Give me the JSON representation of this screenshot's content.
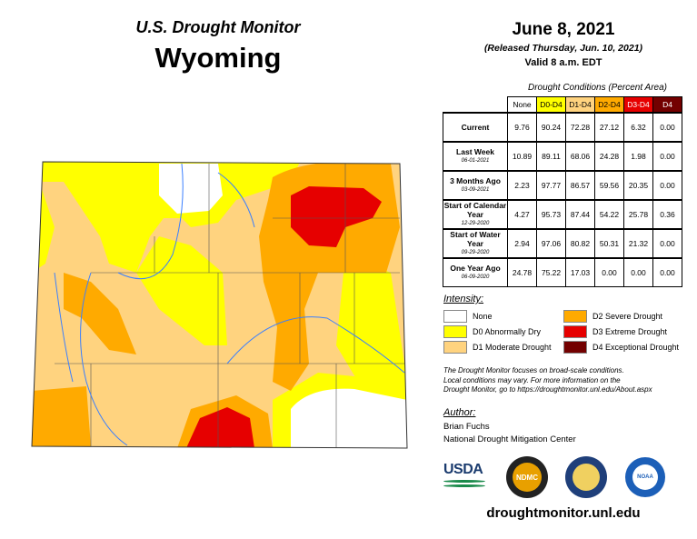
{
  "header": {
    "subtitle": "U.S. Drought Monitor",
    "title": "Wyoming"
  },
  "date": {
    "map_date": "June 8, 2021",
    "released": "(Released Thursday, Jun. 10, 2021)",
    "valid": "Valid 8 a.m. EDT"
  },
  "table": {
    "caption": "Drought Conditions (Percent Area)",
    "columns": [
      {
        "label": "None",
        "color": "#FFFFFF",
        "text": "#000000"
      },
      {
        "label": "D0-D4",
        "color": "#FFFF00",
        "text": "#000000"
      },
      {
        "label": "D1-D4",
        "color": "#FFD37F",
        "text": "#000000"
      },
      {
        "label": "D2-D4",
        "color": "#FFAA00",
        "text": "#000000"
      },
      {
        "label": "D3-D4",
        "color": "#E60000",
        "text": "#FFFFFF"
      },
      {
        "label": "D4",
        "color": "#730000",
        "text": "#FFFFFF"
      }
    ],
    "rows": [
      {
        "label": "Current",
        "sublabel": "",
        "values": [
          "9.76",
          "90.24",
          "72.28",
          "27.12",
          "6.32",
          "0.00"
        ]
      },
      {
        "label": "Last Week",
        "sublabel": "06-01-2021",
        "values": [
          "10.89",
          "89.11",
          "68.06",
          "24.28",
          "1.98",
          "0.00"
        ]
      },
      {
        "label": "3 Months Ago",
        "sublabel": "03-09-2021",
        "values": [
          "2.23",
          "97.77",
          "86.57",
          "59.56",
          "20.35",
          "0.00"
        ]
      },
      {
        "label": "Start of Calendar Year",
        "sublabel": "12-29-2020",
        "values": [
          "4.27",
          "95.73",
          "87.44",
          "54.22",
          "25.78",
          "0.36"
        ]
      },
      {
        "label": "Start of Water Year",
        "sublabel": "09-29-2020",
        "values": [
          "2.94",
          "97.06",
          "80.82",
          "50.31",
          "21.32",
          "0.00"
        ]
      },
      {
        "label": "One Year Ago",
        "sublabel": "06-09-2020",
        "values": [
          "24.78",
          "75.22",
          "17.03",
          "0.00",
          "0.00",
          "0.00"
        ]
      }
    ]
  },
  "legend": {
    "title": "Intensity:",
    "items": [
      {
        "label": "None",
        "color": "#FFFFFF"
      },
      {
        "label": "D0 Abnormally Dry",
        "color": "#FFFF00"
      },
      {
        "label": "D1 Moderate Drought",
        "color": "#FFD37F"
      },
      {
        "label": "D2 Severe Drought",
        "color": "#FFAA00"
      },
      {
        "label": "D3 Extreme Drought",
        "color": "#E60000"
      },
      {
        "label": "D4 Exceptional Drought",
        "color": "#730000"
      }
    ]
  },
  "note": [
    "The Drought Monitor focuses on broad-scale conditions.",
    "Local conditions may vary. For more information on the",
    "Drought Monitor, go to https://droughtmonitor.unl.edu/About.aspx"
  ],
  "author": {
    "title": "Author:",
    "name": "Brian Fuchs",
    "org": "National Drought Mitigation Center"
  },
  "logos": {
    "usda": "USDA",
    "ndmc": "NDMC",
    "doc": "Department of Commerce",
    "noaa": "NOAA"
  },
  "footer": {
    "url": "droughtmonitor.unl.edu"
  }
}
